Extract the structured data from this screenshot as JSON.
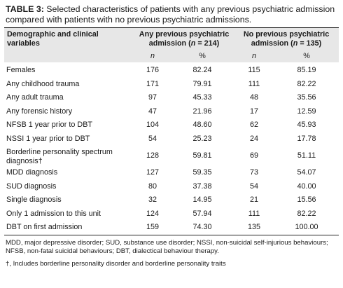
{
  "caption": {
    "tag": "TABLE 3:",
    "text": "Selected characteristics of patients with any previous psychiatric admission compared with patients with no previous psychiatric admissions."
  },
  "header": {
    "col0": "Demographic and clinical variables",
    "group1_line1": "Any previous psychiatric",
    "group1_line2_pre": "admission (",
    "group1_n": "n",
    "group1_line2_post": " = 214)",
    "group2_line1": "No previous psychiatric",
    "group2_line2_pre": "admission (",
    "group2_n": "n",
    "group2_line2_post": " = 135)",
    "n_label": "n",
    "pct_label": "%"
  },
  "rows": [
    {
      "label": "Females",
      "n1": "176",
      "p1": "82.24",
      "n2": "115",
      "p2": "85.19"
    },
    {
      "label": "Any childhood trauma",
      "n1": "171",
      "p1": "79.91",
      "n2": "111",
      "p2": "82.22"
    },
    {
      "label": "Any adult trauma",
      "n1": "97",
      "p1": "45.33",
      "n2": "48",
      "p2": "35.56"
    },
    {
      "label": "Any forensic history",
      "n1": "47",
      "p1": "21.96",
      "n2": "17",
      "p2": "12.59"
    },
    {
      "label": "NFSB 1 year prior to DBT",
      "n1": "104",
      "p1": "48.60",
      "n2": "62",
      "p2": "45.93"
    },
    {
      "label": "NSSI 1 year prior to DBT",
      "n1": "54",
      "p1": "25.23",
      "n2": "24",
      "p2": "17.78"
    },
    {
      "label": "Borderline personality spectrum diagnosis†",
      "n1": "128",
      "p1": "59.81",
      "n2": "69",
      "p2": "51.11"
    },
    {
      "label": "MDD diagnosis",
      "n1": "127",
      "p1": "59.35",
      "n2": "73",
      "p2": "54.07"
    },
    {
      "label": "SUD diagnosis",
      "n1": "80",
      "p1": "37.38",
      "n2": "54",
      "p2": "40.00"
    },
    {
      "label": "Single diagnosis",
      "n1": "32",
      "p1": "14.95",
      "n2": "21",
      "p2": "15.56"
    },
    {
      "label": "Only 1 admission to this unit",
      "n1": "124",
      "p1": "57.94",
      "n2": "111",
      "p2": "82.22"
    },
    {
      "label": "DBT on first admission",
      "n1": "159",
      "p1": "74.30",
      "n2": "135",
      "p2": "100.00"
    }
  ],
  "notes": [
    "MDD, major depressive disorder; SUD, substance use disorder; NSSI, non-suicidal self-injurious behaviours; NFSB, non-fatal suicidal behaviours; DBT, dialectical behaviour therapy.",
    "†, Includes borderline personality disorder and borderline personality traits"
  ]
}
